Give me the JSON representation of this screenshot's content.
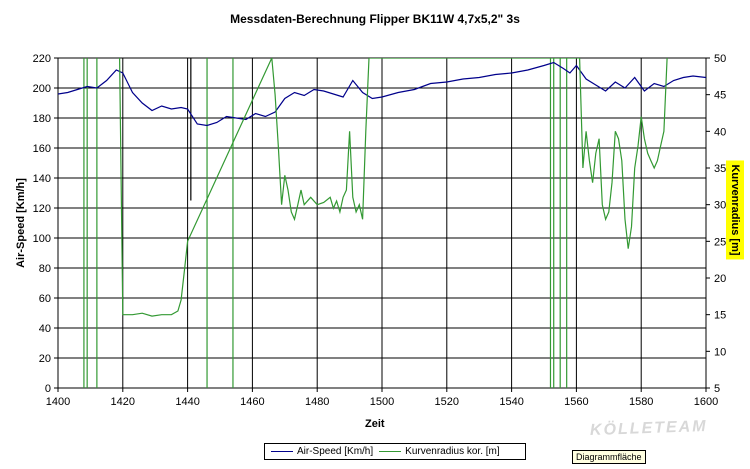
{
  "chart_data": {
    "type": "line",
    "title": "Messdaten-Berechnung Flipper BK11W 4,7x5,2\" 3s",
    "xlabel": "Zeit",
    "ylabel_left": "Air-Speed [Km/h]",
    "ylabel_right": "Kurvenradius [m]",
    "xlim": [
      1400,
      1600
    ],
    "ylim_left": [
      0,
      220
    ],
    "ylim_right": [
      5,
      50
    ],
    "x_ticks": [
      1400,
      1420,
      1440,
      1460,
      1480,
      1500,
      1520,
      1540,
      1560,
      1580,
      1600
    ],
    "y_left_ticks": [
      0,
      20,
      40,
      60,
      80,
      100,
      120,
      140,
      160,
      180,
      200,
      220
    ],
    "y_right_ticks": [
      5,
      10,
      15,
      20,
      25,
      30,
      35,
      40,
      45,
      50
    ],
    "grid": true,
    "legend_position": "bottom",
    "series": [
      {
        "name": "Air-Speed [Km/h]",
        "axis": "left",
        "color": "#00008b",
        "x": [
          1400,
          1403,
          1406,
          1409,
          1412,
          1415,
          1418,
          1420,
          1423,
          1426,
          1429,
          1432,
          1435,
          1438,
          1440,
          1443,
          1446,
          1449,
          1452,
          1455,
          1458,
          1461,
          1464,
          1467,
          1470,
          1473,
          1476,
          1479,
          1482,
          1485,
          1488,
          1491,
          1494,
          1497,
          1500,
          1505,
          1510,
          1515,
          1520,
          1525,
          1530,
          1535,
          1540,
          1545,
          1550,
          1553,
          1556,
          1558,
          1560,
          1563,
          1566,
          1569,
          1572,
          1575,
          1578,
          1581,
          1584,
          1587,
          1590,
          1593,
          1596,
          1600
        ],
        "y": [
          196,
          197,
          199,
          201,
          200,
          205,
          212,
          210,
          197,
          190,
          185,
          188,
          186,
          187,
          186,
          176,
          175,
          177,
          181,
          180,
          179,
          183,
          181,
          184,
          193,
          197,
          195,
          199,
          198,
          196,
          194,
          205,
          197,
          193,
          194,
          197,
          199,
          203,
          204,
          206,
          207,
          209,
          210,
          212,
          215,
          217,
          213,
          210,
          215,
          206,
          202,
          198,
          204,
          200,
          207,
          198,
          203,
          201,
          205,
          207,
          208,
          207
        ]
      },
      {
        "name": "Kurvenradius kor. [m]",
        "axis": "right",
        "color": "#339933",
        "x": [
          1419,
          1420,
          1423,
          1426,
          1429,
          1432,
          1435,
          1437,
          1438,
          1439,
          1440,
          1466,
          1467,
          1468,
          1469,
          1470,
          1471,
          1472,
          1473,
          1474,
          1475,
          1476,
          1478,
          1480,
          1482,
          1484,
          1485,
          1486,
          1487,
          1488,
          1489,
          1490,
          1491,
          1492,
          1493,
          1494,
          1495,
          1496,
          1561,
          1562,
          1563,
          1564,
          1565,
          1566,
          1567,
          1568,
          1569,
          1570,
          1571,
          1572,
          1573,
          1574,
          1575,
          1576,
          1577,
          1578,
          1579,
          1580,
          1581,
          1582,
          1583,
          1584,
          1585,
          1586,
          1587,
          1588
        ],
        "y": [
          50,
          15,
          15,
          15.2,
          14.8,
          15,
          15,
          15.5,
          17,
          21,
          25,
          50,
          45,
          38,
          30,
          34,
          32,
          29,
          28,
          30,
          32,
          30,
          31,
          30,
          30.3,
          31,
          29.5,
          30.5,
          29,
          31,
          32,
          40,
          31,
          29,
          30,
          28,
          40,
          50,
          50,
          35,
          40,
          36,
          33,
          37,
          39,
          30,
          28,
          29,
          33,
          40,
          39,
          36,
          28,
          24,
          27,
          35,
          38,
          42,
          39,
          37,
          36,
          35,
          36,
          38,
          40,
          50
        ]
      }
    ],
    "spikes": [
      {
        "x": 1408,
        "y_left": 0,
        "y_left_to": 220,
        "color": "#339933"
      },
      {
        "x": 1409,
        "y_left": 0,
        "y_left_to": 220,
        "color": "#339933"
      },
      {
        "x": 1412,
        "y_left": 0,
        "y_left_to": 220,
        "color": "#339933"
      },
      {
        "x": 1446,
        "y_left": 0,
        "y_left_to": 220,
        "color": "#339933"
      },
      {
        "x": 1454,
        "y_left": 0,
        "y_left_to": 220,
        "color": "#339933"
      },
      {
        "x": 1441,
        "y_left": 125,
        "y_left_to": 220,
        "color": "#000000"
      },
      {
        "x": 1552,
        "y_left": 0,
        "y_left_to": 220,
        "color": "#339933"
      },
      {
        "x": 1553,
        "y_left": 0,
        "y_left_to": 220,
        "color": "#339933"
      },
      {
        "x": 1555,
        "y_left": 0,
        "y_left_to": 220,
        "color": "#339933"
      },
      {
        "x": 1557,
        "y_left": 0,
        "y_left_to": 220,
        "color": "#339933"
      }
    ]
  },
  "legend": {
    "airspeed_label": "Air-Speed [Km/h]",
    "radius_label": "Kurvenradius kor. [m]"
  },
  "tooltip": "Diagrammfläche",
  "watermark": "KÖLLETEAM",
  "colors": {
    "airspeed": "#00008b",
    "radius": "#339933",
    "right_axis_label_bg": "#ffff00"
  }
}
